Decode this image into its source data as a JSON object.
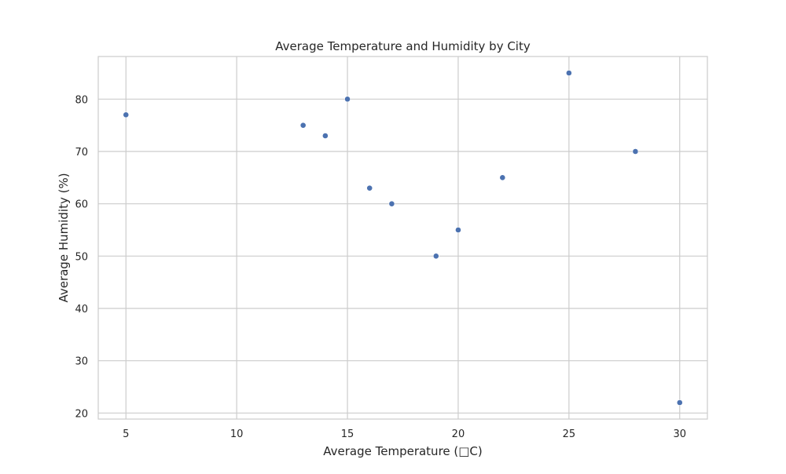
{
  "chart_data": {
    "type": "scatter",
    "title": "Average Temperature and Humidity by City",
    "xlabel": "Average Temperature (□C)",
    "ylabel": "Average Humidity (%)",
    "xlim": [
      3.75,
      31.25
    ],
    "ylim": [
      18.85,
      88.15
    ],
    "xticks": [
      5,
      10,
      15,
      20,
      25,
      30
    ],
    "yticks": [
      20,
      30,
      40,
      50,
      60,
      70,
      80
    ],
    "grid": true,
    "point_color": "#4c72b0",
    "x": [
      5,
      13,
      14,
      15,
      16,
      17,
      19,
      20,
      22,
      25,
      28,
      30
    ],
    "y": [
      77,
      75,
      73,
      80,
      63,
      60,
      50,
      55,
      65,
      85,
      70,
      22
    ]
  }
}
